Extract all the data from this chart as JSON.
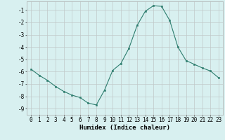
{
  "x": [
    0,
    1,
    2,
    3,
    4,
    5,
    6,
    7,
    8,
    9,
    10,
    11,
    12,
    13,
    14,
    15,
    16,
    17,
    18,
    19,
    20,
    21,
    22,
    23
  ],
  "y": [
    -5.8,
    -6.3,
    -6.7,
    -7.2,
    -7.6,
    -7.9,
    -8.1,
    -8.55,
    -8.7,
    -7.5,
    -5.9,
    -5.35,
    -4.1,
    -2.25,
    -1.1,
    -0.65,
    -0.7,
    -1.85,
    -4.0,
    -5.1,
    -5.4,
    -5.7,
    -5.95,
    -6.5
  ],
  "line_color": "#2d7d6e",
  "marker": "s",
  "marker_size": 2,
  "bg_color": "#d8f0f0",
  "grid_color": "#c0c8c8",
  "xlabel": "Humidex (Indice chaleur)",
  "xlim": [
    -0.5,
    23.5
  ],
  "ylim": [
    -9.5,
    -0.3
  ],
  "yticks": [
    -9,
    -8,
    -7,
    -6,
    -5,
    -4,
    -3,
    -2,
    -1
  ],
  "xticks": [
    0,
    1,
    2,
    3,
    4,
    5,
    6,
    7,
    8,
    9,
    10,
    11,
    12,
    13,
    14,
    15,
    16,
    17,
    18,
    19,
    20,
    21,
    22,
    23
  ],
  "tick_fontsize": 5.5,
  "xlabel_fontsize": 6.5
}
